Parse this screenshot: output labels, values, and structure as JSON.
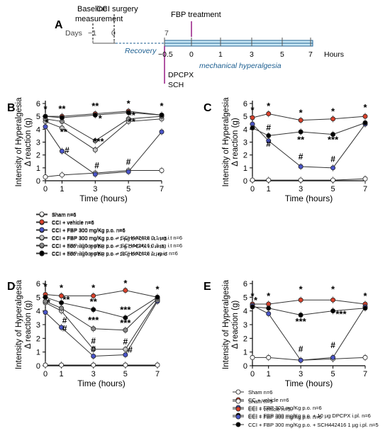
{
  "figure": {
    "colors": {
      "sham": "#ffffff",
      "vehicle": "#d9412b",
      "fbp": "#4a55c8",
      "grey_light": "#c8c8c8",
      "grey_mid": "#8c8c8c",
      "black": "#000000",
      "timeline_band": "#c9e8f5",
      "fbp_marker": "#9c2a8c",
      "recovery_text": "#1d5f91"
    }
  },
  "timeline": {
    "panel_label": "A",
    "baseline_label_1": "Baseline",
    "baseline_label_2": "measurement",
    "cci_surgery_label": "CCI surgery",
    "fbp_treatment_label": "FBP treatment",
    "days_label": "Days",
    "day_ticks": [
      "−1",
      "0",
      "7"
    ],
    "hours_ticks": [
      "−0.5",
      "0",
      "1",
      "3",
      "5",
      "7"
    ],
    "hours_label": "Hours",
    "recovery_label": "Recovery",
    "mech_label": "mechanical hyperalgesia",
    "dpcpx_label": "DPCPX",
    "sch_label": "SCH"
  },
  "chart_data": [
    {
      "panel_label": "B",
      "type": "line",
      "xlabel": "Time (hours)",
      "ylabel_1": "Intensity of Hyperalgesia",
      "ylabel_2": "Δ reaction (g)",
      "x": [
        0,
        1,
        3,
        5,
        7
      ],
      "xticks": [
        "0",
        "1",
        "3",
        "5",
        "7"
      ],
      "yticks": [
        "0",
        "1",
        "2",
        "3",
        "4",
        "5",
        "6"
      ],
      "xlim": [
        0,
        7
      ],
      "ylim": [
        0,
        6
      ],
      "series": [
        {
          "name": "Sham n=6",
          "marker": "sham",
          "values": [
            0.3,
            0.45,
            0.6,
            0.8,
            0.8
          ]
        },
        {
          "name": "CCI + vehicle n=6",
          "marker": "vehicle",
          "values": [
            5.0,
            5.0,
            5.2,
            5.4,
            5.1
          ]
        },
        {
          "name": "CCI + FBP 300 mg/Kg p.o. n=6",
          "marker": "fbp",
          "values": [
            4.2,
            2.3,
            0.5,
            0.7,
            3.8
          ]
        },
        {
          "name": "CCI + FBP 300 mg/Kg p.o + 1 µg DPCPX i.t. n=5",
          "marker": "grey_light",
          "values": [
            4.6,
            4.1,
            2.4,
            4.6,
            4.8
          ]
        },
        {
          "name": "CCI + 300 mg/Kg FBP p.o + 3 g DPCPX i.t. n=5",
          "marker": "grey_mid",
          "values": [
            4.8,
            4.6,
            3.1,
            4.8,
            5.0
          ]
        },
        {
          "name": "CCI + 300 mg/Kg FBP p.o + 10 g DPCPX i.t. n=6",
          "marker": "black",
          "values": [
            5.0,
            4.9,
            5.1,
            5.3,
            5.1
          ]
        }
      ],
      "annotations": [
        {
          "text": "*",
          "x": 0,
          "y": 5.35
        },
        {
          "text": "**",
          "x": 1,
          "y": 5.35
        },
        {
          "text": "**",
          "x": 3,
          "y": 5.55
        },
        {
          "text": "*",
          "x": 5,
          "y": 5.75
        },
        {
          "text": "*",
          "x": 7,
          "y": 5.55
        },
        {
          "text": "*",
          "x": 0.1,
          "y": 4.3
        },
        {
          "text": "**",
          "x": 1.1,
          "y": 3.55
        },
        {
          "text": "#",
          "x": 1.3,
          "y": 2.15
        },
        {
          "text": "***",
          "x": 3.2,
          "y": 2.8
        },
        {
          "text": "*",
          "x": 3.3,
          "y": 4.6
        },
        {
          "text": "#",
          "x": 3.1,
          "y": 0.95
        },
        {
          "text": "**",
          "x": 5.2,
          "y": 4.85
        },
        {
          "text": "**",
          "x": 5.2,
          "y": 4.35
        },
        {
          "text": "#",
          "x": 5,
          "y": 1.25
        }
      ]
    },
    {
      "panel_label": "C",
      "type": "line",
      "xlabel": "Time (hours)",
      "ylabel_1": "Intensity of Hyperalgesia",
      "ylabel_2": "Δ reaction (g)",
      "x": [
        0,
        1,
        3,
        5,
        7
      ],
      "xticks": [
        "0",
        "1",
        "3",
        "5",
        "7"
      ],
      "yticks": [
        "0",
        "1",
        "2",
        "3",
        "4",
        "5",
        "6"
      ],
      "xlim": [
        0,
        7
      ],
      "ylim": [
        0,
        6
      ],
      "series": [
        {
          "name": "Sham n=6",
          "marker": "sham",
          "values": [
            0.05,
            0.05,
            0.05,
            0.05,
            0.15
          ]
        },
        {
          "name": "CC + vehicle n=6",
          "marker": "vehicle",
          "values": [
            4.9,
            5.2,
            4.7,
            4.8,
            5.0
          ]
        },
        {
          "name": "CCI + FBP 300 mg/Kg p.o. n=6",
          "marker": "fbp",
          "values": [
            4.4,
            3.1,
            1.1,
            1.0,
            4.4
          ]
        },
        {
          "name": "CCI + FBP 300 mg/Kg p.o. + 10 µg DPCPX i.pl. n=6",
          "marker": "black",
          "values": [
            4.1,
            3.5,
            3.8,
            3.6,
            4.5
          ]
        }
      ],
      "annotations": [
        {
          "text": "*",
          "x": 0,
          "y": 5.25
        },
        {
          "text": "*",
          "x": 1,
          "y": 5.55
        },
        {
          "text": "*",
          "x": 3,
          "y": 5.05
        },
        {
          "text": "*",
          "x": 5,
          "y": 5.15
        },
        {
          "text": "*",
          "x": 7,
          "y": 5.45
        },
        {
          "text": "#",
          "x": 1,
          "y": 3.9
        },
        {
          "text": "#",
          "x": 1,
          "y": 2.65
        },
        {
          "text": "**",
          "x": 3,
          "y": 2.95
        },
        {
          "text": "#",
          "x": 3,
          "y": 1.65
        },
        {
          "text": "***",
          "x": 5,
          "y": 2.95
        },
        {
          "text": "#",
          "x": 5,
          "y": 1.45
        }
      ]
    },
    {
      "panel_label": "D",
      "type": "line",
      "xlabel": "Time (hours)",
      "ylabel_1": "Intensity of Hyperalgesia",
      "ylabel_2": "Δ reaction (g)",
      "x": [
        0,
        1,
        3,
        5,
        7
      ],
      "xticks": [
        "0",
        "1",
        "3",
        "5",
        "7"
      ],
      "yticks": [
        "0",
        "1",
        "2",
        "3",
        "4",
        "5",
        "6"
      ],
      "xlim": [
        0,
        7
      ],
      "ylim": [
        0,
        6
      ],
      "series": [
        {
          "name": "Sham n=6",
          "marker": "sham",
          "values": [
            0.05,
            0.05,
            0.05,
            0.05,
            0.05
          ]
        },
        {
          "name": "CCI + vehicle n=6",
          "marker": "vehicle",
          "values": [
            5.2,
            5.1,
            5.1,
            5.5,
            5.0
          ]
        },
        {
          "name": "CCI + FBP 300 mg/Kg p.o. n=6",
          "marker": "fbp",
          "values": [
            3.9,
            2.8,
            0.7,
            0.8,
            4.7
          ]
        },
        {
          "name": "CCI + FBP 300 mg/Kg p.o. + SCH442416 0,1 µg i.t n=6",
          "marker": "grey_light",
          "values": [
            4.6,
            4.0,
            1.2,
            1.2,
            4.8
          ]
        },
        {
          "name": "CCI + FBP 300 mg/Kg p.o. + SCH442416 0,3 µg i.t n=6",
          "marker": "grey_mid",
          "values": [
            4.7,
            4.2,
            2.7,
            2.6,
            4.9
          ]
        },
        {
          "name": "CCI + FBP 300 mg/Kg p.o. + SCH442416 1 µg i.t n=6",
          "marker": "black",
          "values": [
            5.0,
            4.6,
            4.1,
            3.5,
            5.0
          ]
        }
      ],
      "annotations": [
        {
          "text": "*",
          "x": 0,
          "y": 5.55
        },
        {
          "text": "*",
          "x": 1,
          "y": 5.45
        },
        {
          "text": "*",
          "x": 3,
          "y": 5.45
        },
        {
          "text": "*",
          "x": 5,
          "y": 5.8
        },
        {
          "text": "*",
          "x": 7,
          "y": 5.35
        },
        {
          "text": "*",
          "x": 0.2,
          "y": 4.4
        },
        {
          "text": "**",
          "x": 1.3,
          "y": 4.6
        },
        {
          "text": "#",
          "x": 1.2,
          "y": 3.1
        },
        {
          "text": "#",
          "x": 1.2,
          "y": 2.5
        },
        {
          "text": "**",
          "x": 3,
          "y": 4.45
        },
        {
          "text": "***",
          "x": 3,
          "y": 3.1
        },
        {
          "text": "#",
          "x": 3,
          "y": 1.6
        },
        {
          "text": "#",
          "x": 3,
          "y": 1.0
        },
        {
          "text": "***",
          "x": 5,
          "y": 3.85
        },
        {
          "text": "***",
          "x": 5,
          "y": 2.9
        },
        {
          "text": "#",
          "x": 5,
          "y": 1.55
        },
        {
          "text": "#",
          "x": 5.3,
          "y": 0.95
        }
      ]
    },
    {
      "panel_label": "E",
      "type": "line",
      "xlabel": "Time (hours)",
      "ylabel_1": "Intensity of Hyperalgesia",
      "ylabel_2": "Δ reaction (g)",
      "x": [
        0,
        1,
        3,
        5,
        7
      ],
      "xticks": [
        "0",
        "1",
        "3",
        "5",
        "7"
      ],
      "yticks": [
        "0",
        "1",
        "2",
        "3",
        "4",
        "5",
        "6"
      ],
      "xlim": [
        0,
        7
      ],
      "ylim": [
        0,
        6
      ],
      "series": [
        {
          "name": "Sham n=5",
          "marker": "sham",
          "values": [
            0.6,
            0.6,
            0.4,
            0.5,
            0.6
          ]
        },
        {
          "name": "CCI + vehicle n=5",
          "marker": "vehicle",
          "values": [
            4.5,
            4.5,
            4.8,
            4.8,
            4.5
          ]
        },
        {
          "name": "CCI + FBP 300 mg/Kg p.o. n=5",
          "marker": "fbp",
          "values": [
            4.4,
            3.8,
            0.4,
            0.6,
            4.3
          ]
        },
        {
          "name": "CCI + FBP 300 mg/Kg p.o. + SCH442416 1 µg i.pl. n=5",
          "marker": "black",
          "values": [
            4.3,
            4.2,
            3.7,
            4.0,
            4.2
          ]
        }
      ],
      "annotations": [
        {
          "text": "*",
          "x": 0,
          "y": 4.85
        },
        {
          "text": "*",
          "x": 1,
          "y": 4.85
        },
        {
          "text": "*",
          "x": 3,
          "y": 5.35
        },
        {
          "text": "*",
          "x": 5,
          "y": 5.35
        },
        {
          "text": "*",
          "x": 7,
          "y": 4.85
        },
        {
          "text": "*",
          "x": 0.2,
          "y": 4.55
        },
        {
          "text": "***",
          "x": 3,
          "y": 3.0
        },
        {
          "text": "***",
          "x": 5.5,
          "y": 3.55
        },
        {
          "text": "#",
          "x": 3,
          "y": 1.0
        },
        {
          "text": "#",
          "x": 5,
          "y": 1.3
        }
      ]
    }
  ]
}
